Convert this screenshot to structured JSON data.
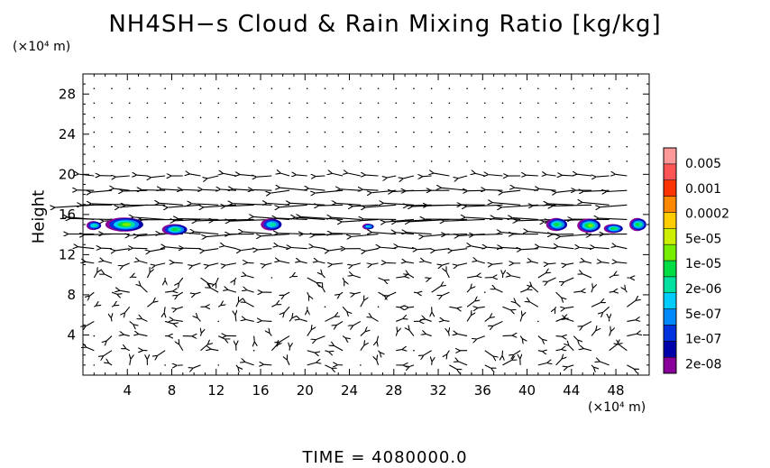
{
  "chart_data": {
    "type": "heatmap",
    "title": "NH4SH−s Cloud & Rain Mixing Ratio [kg/kg]",
    "ylabel": "Height",
    "x_unit": "(×10⁴ m)",
    "y_unit": "(×10⁴ m)",
    "xlim": [
      0,
      51
    ],
    "ylim": [
      0,
      30
    ],
    "x_ticks": [
      4,
      8,
      12,
      16,
      20,
      24,
      28,
      32,
      36,
      40,
      44,
      48
    ],
    "y_ticks": [
      4,
      8,
      12,
      16,
      20,
      24,
      28
    ],
    "colorbar": {
      "labels": [
        "0.005",
        "0.001",
        "0.0002",
        "5e-05",
        "1e-05",
        "2e-06",
        "5e-07",
        "1e-07",
        "2e-08"
      ],
      "colors": [
        "#880099",
        "#0000aa",
        "#0033dd",
        "#0088ff",
        "#00ccff",
        "#00e0a0",
        "#00dd44",
        "#77ee00",
        "#ccee00",
        "#ffcc00",
        "#ff8800",
        "#ff3300",
        "#ff5555",
        "#ff9999"
      ]
    },
    "cloud_patches": [
      {
        "x": 1.0,
        "y": 14.9,
        "w": 1.2,
        "h": 0.9,
        "level": 5
      },
      {
        "x": 3.8,
        "y": 15.0,
        "w": 3.4,
        "h": 1.4,
        "level": 7
      },
      {
        "x": 8.3,
        "y": 14.5,
        "w": 2.2,
        "h": 1.1,
        "level": 6
      },
      {
        "x": 17.0,
        "y": 15.0,
        "w": 1.8,
        "h": 1.2,
        "level": 5
      },
      {
        "x": 25.7,
        "y": 14.8,
        "w": 0.9,
        "h": 0.6,
        "level": 4
      },
      {
        "x": 42.7,
        "y": 15.0,
        "w": 1.8,
        "h": 1.3,
        "level": 6
      },
      {
        "x": 45.6,
        "y": 14.9,
        "w": 2.0,
        "h": 1.4,
        "level": 7
      },
      {
        "x": 47.8,
        "y": 14.6,
        "w": 1.6,
        "h": 0.9,
        "level": 6
      },
      {
        "x": 50.0,
        "y": 15.0,
        "w": 1.4,
        "h": 1.3,
        "level": 6
      }
    ],
    "wind_field": "strong westward jet near 11–20 × 10⁴ m height, weak mixed flow below"
  },
  "time_label": "TIME  =  4080000.0"
}
